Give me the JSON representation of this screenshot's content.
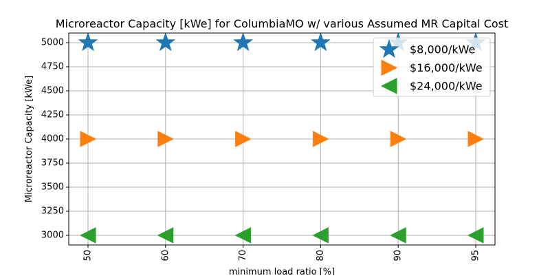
{
  "chart_data": {
    "type": "scatter",
    "title": "Microreactor Capacity [kWe] for ColumbiaMO w/ various Assumed MR Capital Cost",
    "xlabel": "minimum load ratio [%]",
    "ylabel": "Microreactor Capacity [kWe]",
    "categories": [
      "50",
      "60",
      "70",
      "80",
      "90",
      "95"
    ],
    "yticks": [
      3000,
      3250,
      3500,
      3750,
      4000,
      4250,
      4500,
      4750,
      5000
    ],
    "ylim": [
      2900,
      5100
    ],
    "grid": true,
    "legend_position": "top-right",
    "x_tick_rotation": "vertical",
    "series": [
      {
        "name": "$8,000/kWe",
        "marker": "star",
        "color": "#1f77b4",
        "values": [
          5000,
          5000,
          5000,
          5000,
          5000,
          5000
        ]
      },
      {
        "name": "$16,000/kWe",
        "marker": "triangle-right",
        "color": "#ff7f0e",
        "values": [
          4000,
          4000,
          4000,
          4000,
          4000,
          4000
        ]
      },
      {
        "name": "$24,000/kWe",
        "marker": "triangle-left",
        "color": "#2ca02c",
        "values": [
          3000,
          3000,
          3000,
          3000,
          3000,
          3000
        ]
      }
    ]
  }
}
